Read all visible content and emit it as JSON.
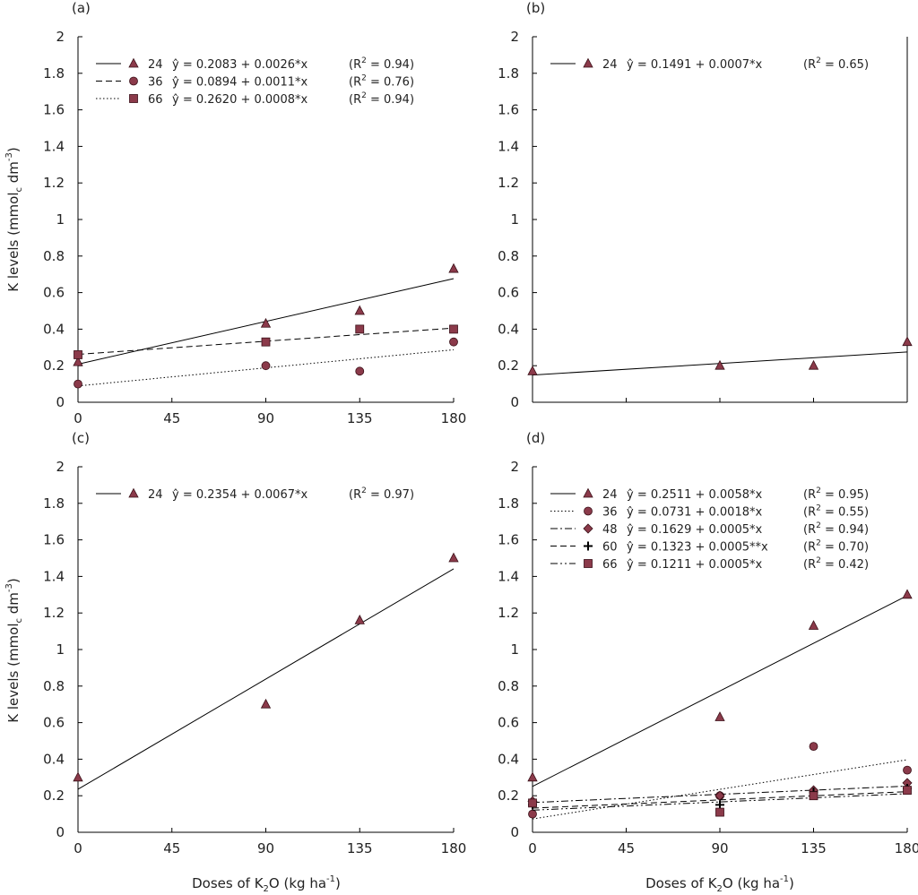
{
  "figure": {
    "xlabel_pre": "Doses of K",
    "xlabel_sub": "2",
    "xlabel_mid": "O (kg ha",
    "xlabel_sup": "-1",
    "xlabel_post": ")",
    "ylabel_pre": "K levels (mmol",
    "ylabel_sub": "c",
    "ylabel_mid": " dm",
    "ylabel_sup": "-3",
    "ylabel_post": ")"
  },
  "chart_data": [
    {
      "type": "scatter",
      "panel": "(a)",
      "xlim": [
        0,
        180
      ],
      "ylim": [
        0,
        2
      ],
      "xticks": [
        "0",
        "45",
        "90",
        "135",
        "180"
      ],
      "yticks": [
        "0",
        "0.2",
        "0.4",
        "0.6",
        "0.8",
        "1",
        "1.2",
        "1.4",
        "1.6",
        "1.8",
        "2"
      ],
      "grid": false,
      "legend_position": "top-left",
      "series": [
        {
          "name": "24",
          "marker": "triangle",
          "line": "solid",
          "equation": "ŷ = 0.2083 + 0.0026*x",
          "r2_pre": "(R",
          "r2_post": " = 0.94)",
          "intercept": 0.2083,
          "slope": 0.0026,
          "x": [
            0,
            90,
            135,
            180
          ],
          "y": [
            0.22,
            0.43,
            0.5,
            0.73
          ]
        },
        {
          "name": "36",
          "marker": "circle",
          "line": "dashed",
          "equation": "ŷ = 0.0894 + 0.0011*x",
          "r2_pre": "(R",
          "r2_post": " = 0.76)",
          "intercept": 0.0894,
          "slope": 0.0011,
          "x": [
            0,
            90,
            135,
            180
          ],
          "y": [
            0.1,
            0.2,
            0.17,
            0.33
          ]
        },
        {
          "name": "66",
          "marker": "square",
          "line": "dotted",
          "equation": "ŷ = 0.2620 + 0.0008*x",
          "r2_pre": "(R",
          "r2_post": " = 0.94)",
          "intercept": 0.262,
          "slope": 0.0008,
          "x": [
            0,
            90,
            135,
            180
          ],
          "y": [
            0.26,
            0.33,
            0.4,
            0.4
          ]
        }
      ],
      "fit_line_styles": [
        "solid",
        "dotted",
        "dashed"
      ]
    },
    {
      "type": "scatter",
      "panel": "(b)",
      "xlim": [
        0,
        180
      ],
      "ylim": [
        0,
        2
      ],
      "xticks": [],
      "yticks": [
        "0",
        "0.2",
        "0.4",
        "0.6",
        "0.8",
        "1",
        "1.2",
        "1.4",
        "1.6",
        "1.8",
        "2"
      ],
      "grid": false,
      "legend_position": "top-left",
      "series": [
        {
          "name": "24",
          "marker": "triangle",
          "line": "solid",
          "equation": "ŷ = 0.1491 + 0.0007*x",
          "r2_pre": "(R",
          "r2_post": " = 0.65)",
          "intercept": 0.1491,
          "slope": 0.0007,
          "x": [
            0,
            90,
            135,
            180
          ],
          "y": [
            0.17,
            0.2,
            0.2,
            0.33
          ]
        }
      ]
    },
    {
      "type": "scatter",
      "panel": "(c)",
      "xlim": [
        0,
        180
      ],
      "ylim": [
        0,
        2
      ],
      "xticks": [
        "0",
        "45",
        "90",
        "135",
        "180"
      ],
      "yticks": [
        "0",
        "0.2",
        "0.4",
        "0.6",
        "0.8",
        "1",
        "1.2",
        "1.4",
        "1.6",
        "1.8",
        "2"
      ],
      "grid": false,
      "legend_position": "top-left",
      "series": [
        {
          "name": "24",
          "marker": "triangle",
          "line": "solid",
          "equation": "ŷ = 0.2354 + 0.0067*x",
          "r2_pre": "(R",
          "r2_post": " = 0.97)",
          "intercept": 0.2354,
          "slope": 0.0067,
          "x": [
            0,
            90,
            135,
            180
          ],
          "y": [
            0.3,
            0.7,
            1.16,
            1.5
          ]
        }
      ]
    },
    {
      "type": "scatter",
      "panel": "(d)",
      "xlim": [
        0,
        180
      ],
      "ylim": [
        0,
        2
      ],
      "xticks": [
        "0",
        "45",
        "90",
        "135",
        "180"
      ],
      "yticks": [
        "0",
        "0.2",
        "0.4",
        "0.6",
        "0.8",
        "1",
        "1.2",
        "1.4",
        "1.6",
        "1.8",
        "2"
      ],
      "grid": false,
      "legend_position": "top-left",
      "series": [
        {
          "name": "24",
          "marker": "triangle",
          "line": "solid",
          "equation": "ŷ = 0.2511 + 0.0058*x",
          "r2_pre": "(R",
          "r2_post": " = 0.95)",
          "intercept": 0.2511,
          "slope": 0.0058,
          "x": [
            0,
            90,
            135,
            180
          ],
          "y": [
            0.3,
            0.63,
            1.13,
            1.3
          ]
        },
        {
          "name": "36",
          "marker": "circle",
          "line": "dotted",
          "equation": "ŷ = 0.0731 + 0.0018*x",
          "r2_pre": "(R",
          "r2_post": " = 0.55)",
          "intercept": 0.0731,
          "slope": 0.0018,
          "x": [
            0,
            90,
            135,
            180
          ],
          "y": [
            0.1,
            0.2,
            0.47,
            0.34
          ]
        },
        {
          "name": "48",
          "marker": "diamond",
          "line": "dashdot",
          "equation": "ŷ = 0.1629 + 0.0005*x",
          "r2_pre": "(R",
          "r2_post": " = 0.94)",
          "intercept": 0.1629,
          "slope": 0.0005,
          "x": [
            0,
            90,
            135,
            180
          ],
          "y": [
            0.17,
            0.2,
            0.23,
            0.27
          ]
        },
        {
          "name": "60",
          "marker": "plus",
          "line": "dashed",
          "equation": "ŷ = 0.1323 + 0.0005**x",
          "r2_pre": "(R",
          "r2_post": " = 0.70)",
          "intercept": 0.1323,
          "slope": 0.0005,
          "x": [
            0,
            90,
            135,
            180
          ],
          "y": [
            0.15,
            0.15,
            0.22,
            0.24
          ]
        },
        {
          "name": "66",
          "marker": "square",
          "line": "dashdotdot",
          "equation": "ŷ = 0.1211 + 0.0005*x",
          "r2_pre": "(R",
          "r2_post": " = 0.42)",
          "intercept": 0.1211,
          "slope": 0.0005,
          "x": [
            0,
            90,
            135,
            180
          ],
          "y": [
            0.16,
            0.11,
            0.2,
            0.23
          ]
        }
      ]
    }
  ],
  "colors": {
    "marker_fill": "#8b3a4a",
    "marker_stroke": "#3a1018",
    "line": "#000000"
  }
}
